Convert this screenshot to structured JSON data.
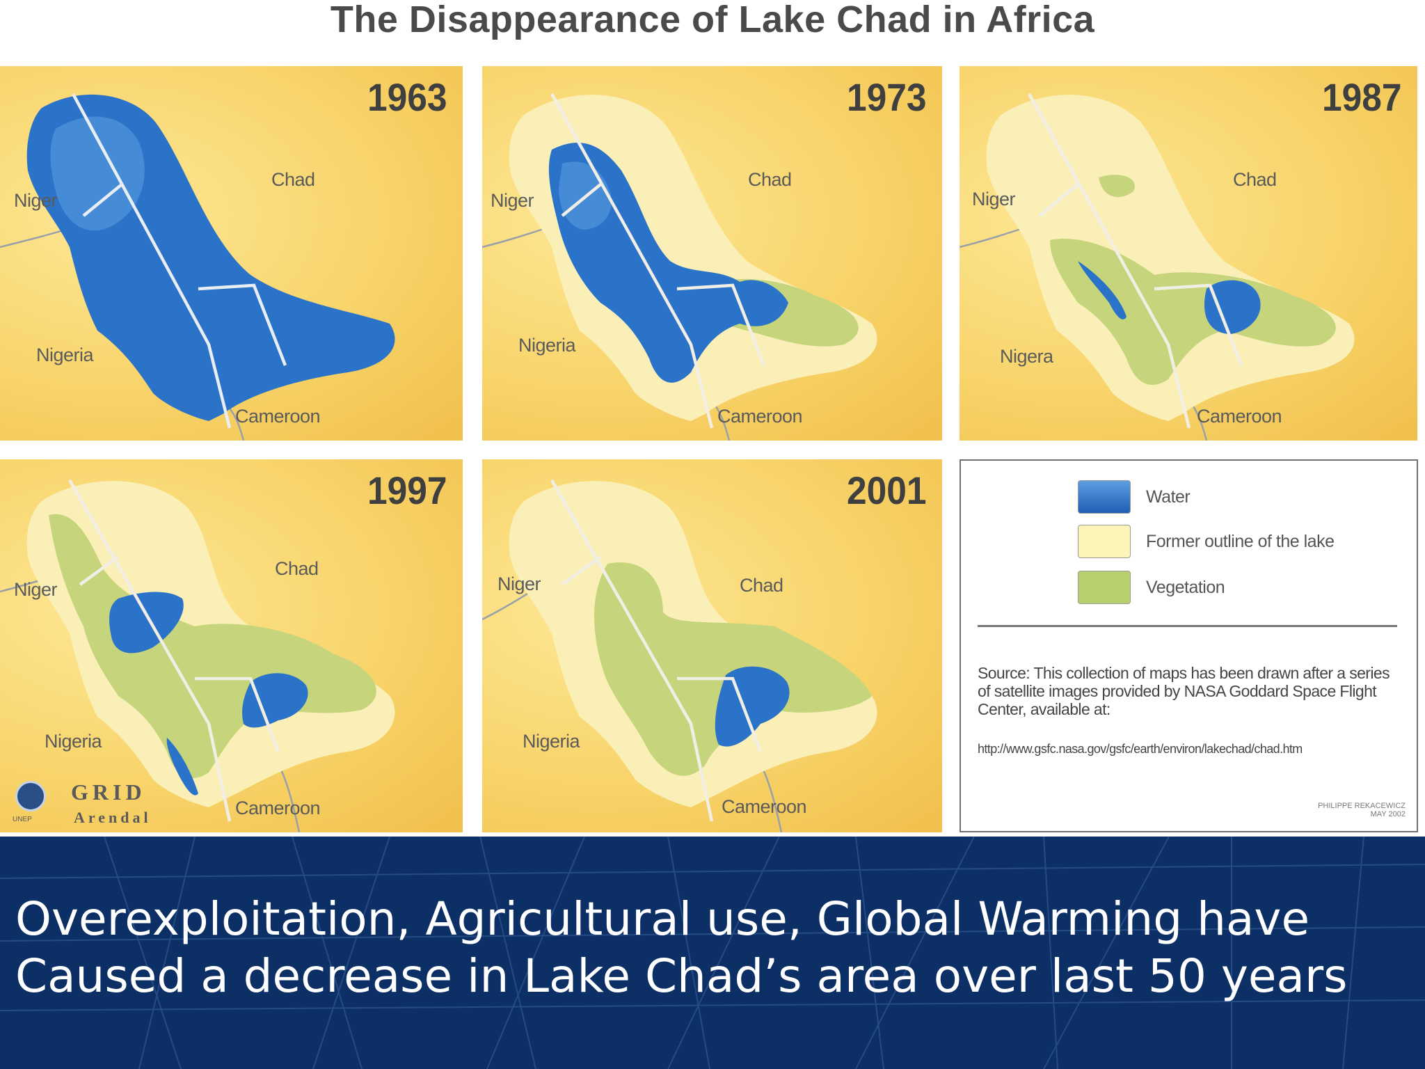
{
  "title": "The Disappearance of Lake Chad in Africa",
  "panels": [
    {
      "year": "1963",
      "labels": {
        "niger": "Niger",
        "chad": "Chad",
        "nigeria": "Nigeria",
        "cameroon": "Cameroon"
      }
    },
    {
      "year": "1973",
      "labels": {
        "niger": "Niger",
        "chad": "Chad",
        "nigeria": "Nigeria",
        "cameroon": "Cameroon"
      }
    },
    {
      "year": "1987",
      "labels": {
        "niger": "Niger",
        "chad": "Chad",
        "nigeria": "Nigera",
        "cameroon": "Cameroon"
      }
    },
    {
      "year": "1997",
      "labels": {
        "niger": "Niger",
        "chad": "Chad",
        "nigeria": "Nigeria",
        "cameroon": "Cameroon"
      }
    },
    {
      "year": "2001",
      "labels": {
        "niger": "Niger",
        "chad": "Chad",
        "nigeria": "Nigeria",
        "cameroon": "Cameroon"
      }
    }
  ],
  "legend": {
    "items": [
      {
        "label": "Water",
        "color": "#2b73c8"
      },
      {
        "label": "Former outline of the lake",
        "color": "#fdf4b8"
      },
      {
        "label": "Vegetation",
        "color": "#b8cf6e"
      }
    ],
    "source": "Source:  This collection of maps has been drawn after a series of satellite images provided by NASA Goddard Space Flight Center, available at:",
    "url": "http://www.gsfc.nasa.gov/gsfc/earth/environ/lakechad/chad.htm",
    "credit_line1": "PHILIPPE REKACEWICZ",
    "credit_line2": "MAY 2002"
  },
  "logo": {
    "grid": "GRID",
    "arendal": "Arendal",
    "unep": "UNEP"
  },
  "caption": {
    "line1": "Overexploitation, Agricultural use, Global Warming have",
    "line2": "Caused a decrease in Lake Chad’s area over last 50 years"
  },
  "colors": {
    "water": "#2b73c8",
    "outline": "#fdf4b8",
    "vegetation": "#b8cf6e",
    "footer": "#0c2f66",
    "map_bg": "#f8d46a"
  }
}
